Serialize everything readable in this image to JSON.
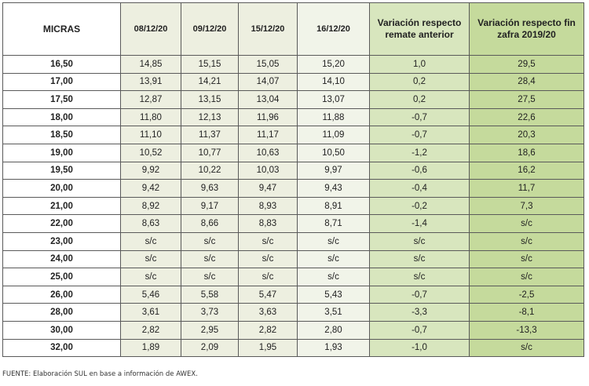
{
  "table": {
    "headers": [
      "MICRAS",
      "08/12/20",
      "09/12/20",
      "15/12/20",
      "16/12/20",
      "Variación respecto remate anterior",
      "Variación respecto fin zafra 2019/20"
    ],
    "rows": [
      [
        "16,50",
        "14,85",
        "15,15",
        "15,05",
        "15,20",
        "1,0",
        "29,5"
      ],
      [
        "17,00",
        "13,91",
        "14,21",
        "14,07",
        "14,10",
        "0,2",
        "28,4"
      ],
      [
        "17,50",
        "12,87",
        "13,15",
        "13,04",
        "13,07",
        "0,2",
        "27,5"
      ],
      [
        "18,00",
        "11,80",
        "12,13",
        "11,96",
        "11,88",
        "-0,7",
        "22,6"
      ],
      [
        "18,50",
        "11,10",
        "11,37",
        "11,17",
        "11,09",
        "-0,7",
        "20,3"
      ],
      [
        "19,00",
        "10,52",
        "10,77",
        "10,63",
        "10,50",
        "-1,2",
        "18,6"
      ],
      [
        "19,50",
        "9,92",
        "10,22",
        "10,03",
        "9,97",
        "-0,6",
        "16,2"
      ],
      [
        "20,00",
        "9,42",
        "9,63",
        "9,47",
        "9,43",
        "-0,4",
        "11,7"
      ],
      [
        "21,00",
        "8,92",
        "9,17",
        "8,93",
        "8,91",
        "-0,2",
        "7,3"
      ],
      [
        "22,00",
        "8,63",
        "8,66",
        "8,83",
        "8,71",
        "-1,4",
        "s/c"
      ],
      [
        "23,00",
        "s/c",
        "s/c",
        "s/c",
        "s/c",
        "s/c",
        "s/c"
      ],
      [
        "24,00",
        "s/c",
        "s/c",
        "s/c",
        "s/c",
        "s/c",
        "s/c"
      ],
      [
        "25,00",
        "s/c",
        "s/c",
        "s/c",
        "s/c",
        "s/c",
        "s/c"
      ],
      [
        "26,00",
        "5,46",
        "5,58",
        "5,47",
        "5,43",
        "-0,7",
        "-2,5"
      ],
      [
        "28,00",
        "3,61",
        "3,73",
        "3,63",
        "3,51",
        "-3,3",
        "-8,1"
      ],
      [
        "30,00",
        "2,82",
        "2,95",
        "2,82",
        "2,80",
        "-0,7",
        "-13,3"
      ],
      [
        "32,00",
        "1,89",
        "2,09",
        "1,95",
        "1,93",
        "-1,0",
        "s/c"
      ]
    ]
  },
  "footer": {
    "source": "FUENTE: Elaboración SUL en base a información de AWEX."
  },
  "colors": {
    "date_columns": "#edefe0",
    "last_date_column": "#f1f4e9",
    "variation_previous": "#d8e6be",
    "variation_season": "#c5da9c",
    "border": "#5a5a5a"
  }
}
